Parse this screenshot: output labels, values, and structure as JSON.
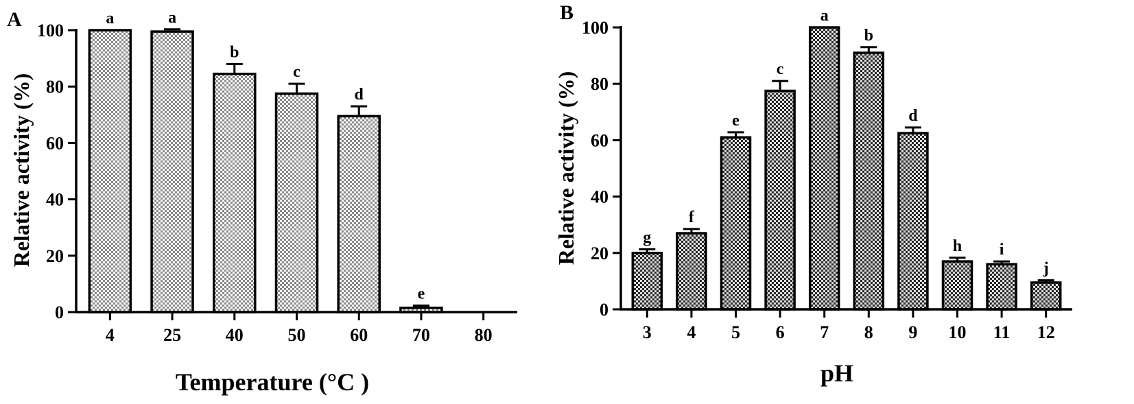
{
  "chart_data": [
    {
      "panel": "A",
      "type": "bar",
      "xlabel": "Temperature (°C )",
      "ylabel": "Relative activity (%)",
      "ylim": [
        0,
        100
      ],
      "yticks": [
        0,
        20,
        40,
        60,
        80,
        100
      ],
      "categories": [
        "4",
        "25",
        "40",
        "50",
        "60",
        "70",
        "80"
      ],
      "values": [
        100,
        99.5,
        84.5,
        77.5,
        69.5,
        1.5,
        0
      ],
      "errors": [
        0,
        0.8,
        3.5,
        3.5,
        3.5,
        0.8,
        0
      ],
      "letters": [
        "a",
        "a",
        "b",
        "c",
        "d",
        "e",
        ""
      ],
      "fill": "checkered-light",
      "grid": false
    },
    {
      "panel": "B",
      "type": "bar",
      "xlabel": "pH",
      "ylabel": "Relative activity (%)",
      "ylim": [
        0,
        100
      ],
      "yticks": [
        0,
        20,
        40,
        60,
        80,
        100
      ],
      "categories": [
        "3",
        "4",
        "5",
        "6",
        "7",
        "8",
        "9",
        "10",
        "11",
        "12"
      ],
      "values": [
        20,
        27,
        61,
        77.5,
        100,
        91,
        62.5,
        17,
        16,
        9.5
      ],
      "errors": [
        1.3,
        1.5,
        1.8,
        3.5,
        0,
        2,
        2,
        1.3,
        1,
        0.8
      ],
      "letters": [
        "g",
        "f",
        "e",
        "c",
        "a",
        "b",
        "d",
        "h",
        "i",
        "j"
      ],
      "fill": "checkered-dark",
      "grid": false
    }
  ]
}
